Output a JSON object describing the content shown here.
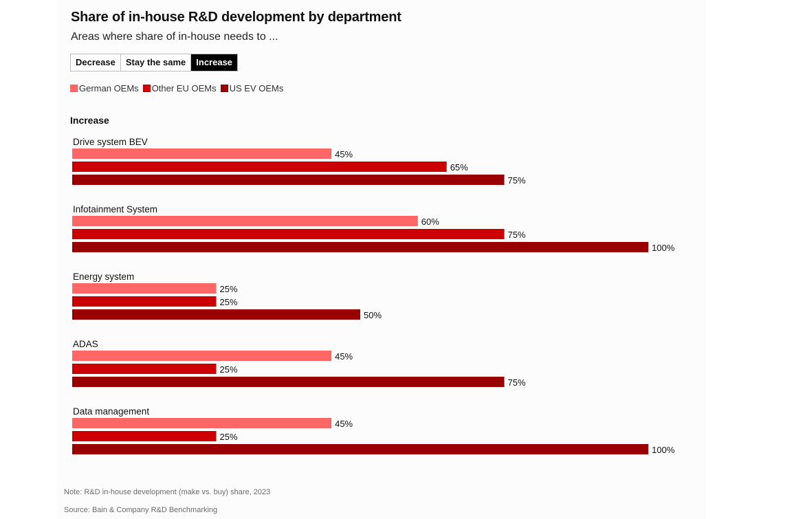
{
  "title": "Share of in-house R&D development by department",
  "subtitle": "Areas where share of in-house needs to ...",
  "toggle": {
    "options": [
      "Decrease",
      "Stay the same",
      "Increase"
    ],
    "selected": "Increase"
  },
  "legend": [
    {
      "label": "German OEMs",
      "color": "#ff6666"
    },
    {
      "label": "Other EU OEMs",
      "color": "#cc0000"
    },
    {
      "label": "US EV OEMs",
      "color": "#990000"
    }
  ],
  "section_label": "Increase",
  "note": "Note: R&D in-house development (make vs. buy) share, 2023",
  "source": "Source: Bain & Company R&D Benchmarking",
  "chart_data": {
    "type": "bar",
    "orientation": "horizontal",
    "categories": [
      "Drive system BEV",
      "Infotainment System",
      "Energy system",
      "ADAS",
      "Data management"
    ],
    "series": [
      {
        "name": "German OEMs",
        "color": "#ff6666",
        "values": [
          45,
          60,
          25,
          45,
          45
        ]
      },
      {
        "name": "Other EU OEMs",
        "color": "#cc0000",
        "values": [
          65,
          75,
          25,
          25,
          25
        ]
      },
      {
        "name": "US EV OEMs",
        "color": "#990000",
        "values": [
          75,
          100,
          50,
          75,
          100
        ]
      }
    ],
    "value_suffix": "%",
    "xlim": [
      0,
      100
    ],
    "grid": false,
    "legend_position": "top-left"
  }
}
